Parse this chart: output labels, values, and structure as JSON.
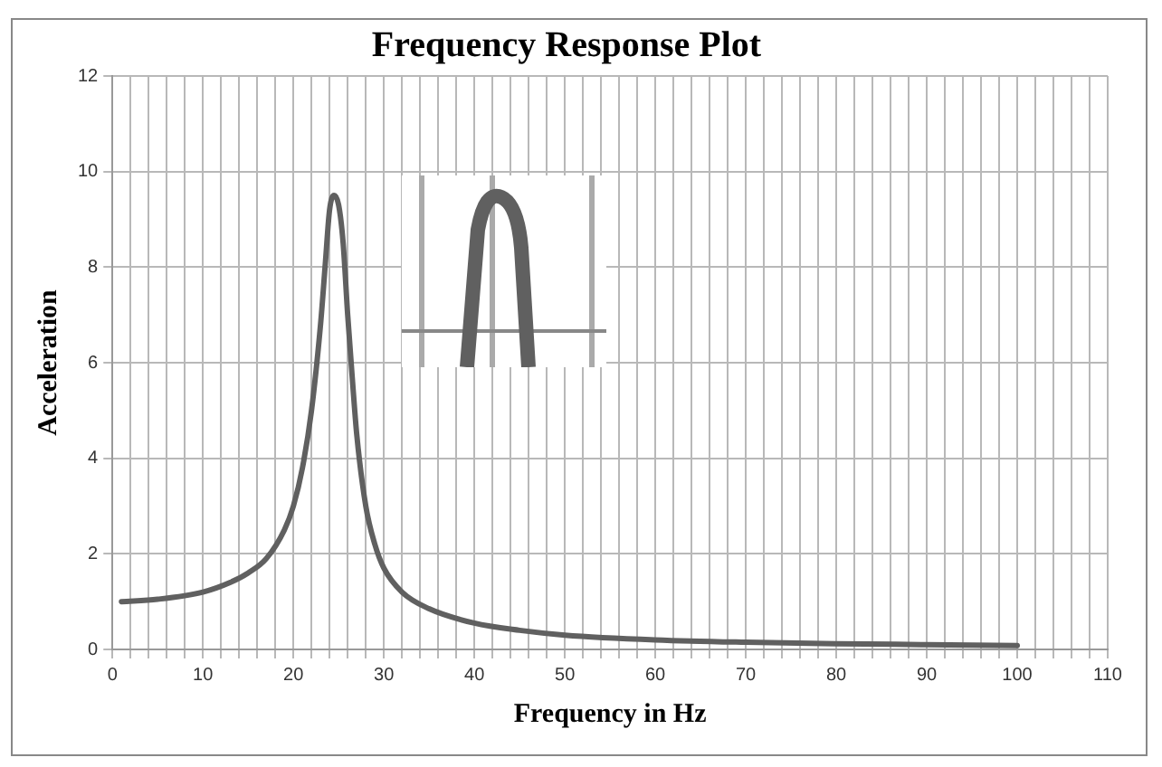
{
  "chart_data": {
    "type": "line",
    "title": "Frequency Response Plot",
    "xlabel": "Frequency in Hz",
    "ylabel": "Acceleration",
    "x": [
      1,
      5,
      10,
      13,
      15,
      17,
      19,
      20,
      21,
      22,
      23,
      23.5,
      24,
      24.5,
      25,
      25.5,
      26,
      26.5,
      27,
      28,
      29,
      30,
      32,
      35,
      40,
      45,
      50,
      60,
      70,
      80,
      90,
      100
    ],
    "series": [
      {
        "color": "#606060",
        "values": [
          1.0,
          1.05,
          1.2,
          1.4,
          1.6,
          1.9,
          2.5,
          3.0,
          3.8,
          5.0,
          6.8,
          8.0,
          9.2,
          9.5,
          9.3,
          8.5,
          7.0,
          5.7,
          4.5,
          3.0,
          2.2,
          1.7,
          1.2,
          0.85,
          0.55,
          0.4,
          0.3,
          0.2,
          0.15,
          0.12,
          0.1,
          0.08
        ]
      }
    ],
    "xlim": [
      0,
      110
    ],
    "xticks": [
      0,
      {
        "value": 2,
        "label": null
      },
      {
        "value": 4,
        "label": null
      },
      {
        "value": 6,
        "label": null
      },
      {
        "value": 8,
        "label": null
      },
      10,
      {
        "value": 12,
        "label": null
      },
      {
        "value": 14,
        "label": null
      },
      {
        "value": 16,
        "label": null
      },
      {
        "value": 18,
        "label": null
      },
      20,
      {
        "value": 22,
        "label": null
      },
      {
        "value": 24,
        "label": null
      },
      {
        "value": 26,
        "label": null
      },
      {
        "value": 28,
        "label": null
      },
      30,
      {
        "value": 32,
        "label": null
      },
      {
        "value": 34,
        "label": null
      },
      {
        "value": 36,
        "label": null
      },
      {
        "value": 38,
        "label": null
      },
      40,
      {
        "value": 42,
        "label": null
      },
      {
        "value": 44,
        "label": null
      },
      {
        "value": 46,
        "label": null
      },
      {
        "value": 48,
        "label": null
      },
      50,
      {
        "value": 52,
        "label": null
      },
      {
        "value": 54,
        "label": null
      },
      {
        "value": 56,
        "label": null
      },
      {
        "value": 58,
        "label": null
      },
      60,
      {
        "value": 62,
        "label": null
      },
      {
        "value": 64,
        "label": null
      },
      {
        "value": 66,
        "label": null
      },
      {
        "value": 68,
        "label": null
      },
      70,
      {
        "value": 72,
        "label": null
      },
      {
        "value": 74,
        "label": null
      },
      {
        "value": 76,
        "label": null
      },
      {
        "value": 78,
        "label": null
      },
      80,
      {
        "value": 82,
        "label": null
      },
      {
        "value": 84,
        "label": null
      },
      {
        "value": 86,
        "label": null
      },
      {
        "value": 88,
        "label": null
      },
      90,
      {
        "value": 92,
        "label": null
      },
      {
        "value": 94,
        "label": null
      },
      {
        "value": 96,
        "label": null
      },
      {
        "value": 98,
        "label": null
      },
      100,
      {
        "value": 102,
        "label": null
      },
      {
        "value": 104,
        "label": null
      },
      {
        "value": 106,
        "label": null
      },
      {
        "value": 108,
        "label": null
      },
      110
    ],
    "ylim": [
      0,
      12
    ],
    "yticks": [
      0,
      2,
      4,
      6,
      8,
      10,
      12
    ],
    "grid": true,
    "legend": false,
    "marker": "none",
    "line_style": "solid"
  }
}
